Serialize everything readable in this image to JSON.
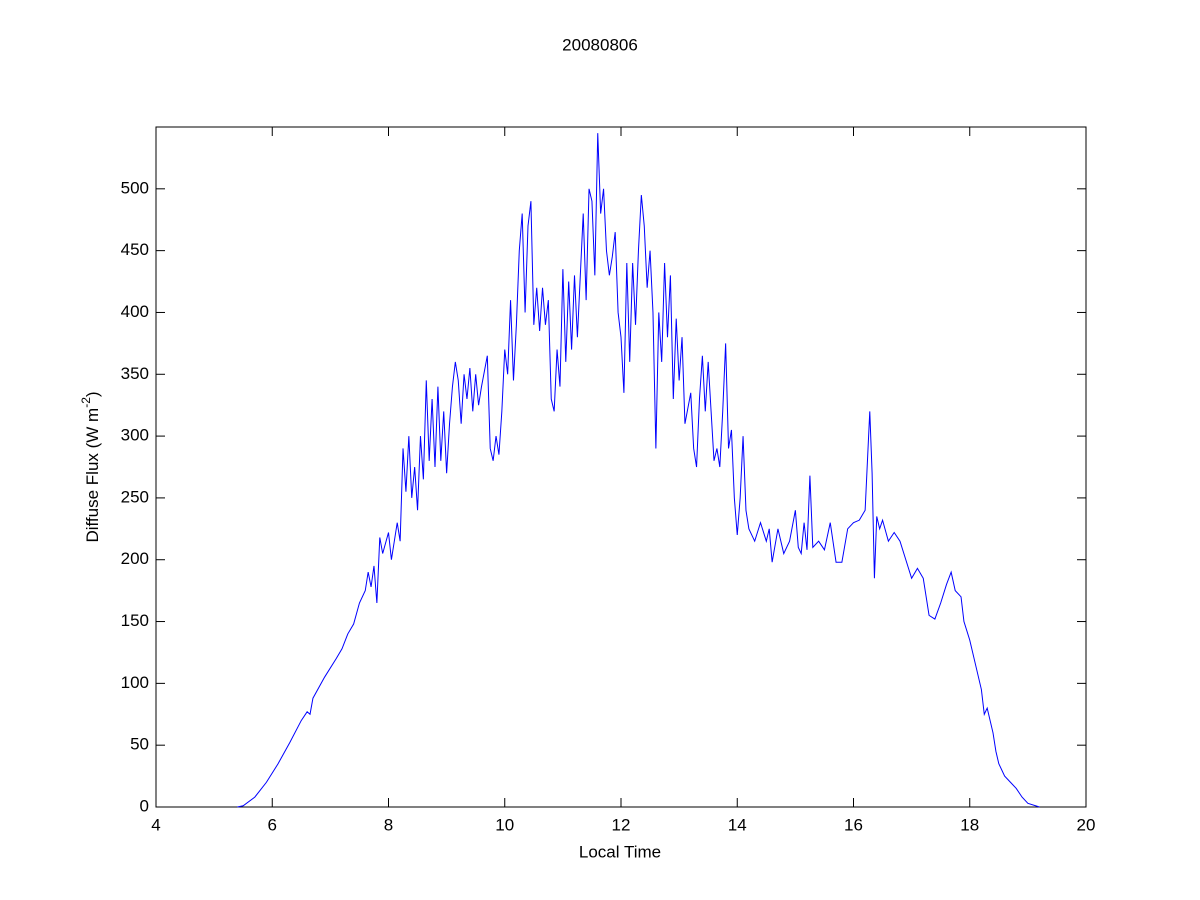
{
  "chart_data": {
    "type": "line",
    "title": "20080806",
    "x_label": "Local Time",
    "y_label": {
      "text": "Diffuse Flux (W m",
      "superscript": "-2",
      "suffix": ")"
    },
    "xlim": [
      4,
      20
    ],
    "xticks": [
      4,
      6,
      8,
      10,
      12,
      14,
      16,
      18,
      20
    ],
    "ylim": [
      0,
      550
    ],
    "yticks": [
      0,
      50,
      100,
      150,
      200,
      250,
      300,
      350,
      400,
      450,
      500
    ],
    "grid": false,
    "series": [
      {
        "color": "#0000ff",
        "x": [
          5.4,
          5.5,
          5.7,
          5.9,
          6.1,
          6.3,
          6.5,
          6.6,
          6.65,
          6.7,
          6.9,
          7.1,
          7.2,
          7.3,
          7.4,
          7.5,
          7.6,
          7.65,
          7.7,
          7.75,
          7.8,
          7.85,
          7.9,
          8.0,
          8.05,
          8.15,
          8.2,
          8.25,
          8.3,
          8.35,
          8.4,
          8.45,
          8.5,
          8.55,
          8.6,
          8.65,
          8.7,
          8.75,
          8.8,
          8.85,
          8.9,
          8.95,
          9.0,
          9.05,
          9.1,
          9.15,
          9.2,
          9.25,
          9.3,
          9.35,
          9.4,
          9.45,
          9.5,
          9.55,
          9.6,
          9.7,
          9.75,
          9.8,
          9.85,
          9.9,
          9.95,
          10.0,
          10.05,
          10.1,
          10.15,
          10.2,
          10.25,
          10.3,
          10.35,
          10.4,
          10.45,
          10.5,
          10.55,
          10.6,
          10.65,
          10.7,
          10.75,
          10.8,
          10.85,
          10.9,
          10.95,
          11.0,
          11.05,
          11.1,
          11.15,
          11.2,
          11.25,
          11.3,
          11.35,
          11.4,
          11.45,
          11.5,
          11.55,
          11.6,
          11.65,
          11.7,
          11.75,
          11.8,
          11.85,
          11.9,
          11.95,
          12.0,
          12.05,
          12.1,
          12.15,
          12.2,
          12.25,
          12.3,
          12.35,
          12.4,
          12.45,
          12.5,
          12.55,
          12.6,
          12.65,
          12.7,
          12.75,
          12.8,
          12.85,
          12.9,
          12.95,
          13.0,
          13.05,
          13.1,
          13.2,
          13.25,
          13.3,
          13.35,
          13.4,
          13.45,
          13.5,
          13.55,
          13.6,
          13.65,
          13.7,
          13.75,
          13.8,
          13.85,
          13.9,
          13.95,
          14.0,
          14.05,
          14.1,
          14.15,
          14.2,
          14.3,
          14.4,
          14.5,
          14.55,
          14.6,
          14.7,
          14.8,
          14.9,
          15.0,
          15.05,
          15.1,
          15.15,
          15.2,
          15.25,
          15.3,
          15.4,
          15.5,
          15.6,
          15.7,
          15.8,
          15.9,
          16.0,
          16.1,
          16.2,
          16.25,
          16.28,
          16.32,
          16.36,
          16.4,
          16.45,
          16.5,
          16.6,
          16.7,
          16.8,
          16.9,
          17.0,
          17.1,
          17.2,
          17.3,
          17.4,
          17.5,
          17.6,
          17.68,
          17.75,
          17.85,
          17.9,
          18.0,
          18.1,
          18.2,
          18.25,
          18.3,
          18.4,
          18.45,
          18.5,
          18.6,
          18.7,
          18.8,
          18.9,
          19.0,
          19.2
        ],
        "values": [
          0,
          1,
          8,
          20,
          35,
          52,
          70,
          77,
          75,
          88,
          105,
          120,
          128,
          140,
          148,
          165,
          175,
          190,
          178,
          195,
          165,
          218,
          205,
          222,
          200,
          230,
          215,
          290,
          255,
          300,
          250,
          275,
          240,
          300,
          265,
          345,
          280,
          330,
          275,
          340,
          280,
          320,
          270,
          310,
          340,
          360,
          345,
          310,
          350,
          330,
          355,
          320,
          350,
          325,
          340,
          365,
          290,
          280,
          300,
          285,
          320,
          370,
          350,
          410,
          345,
          390,
          450,
          480,
          400,
          470,
          490,
          390,
          420,
          385,
          420,
          390,
          410,
          330,
          320,
          370,
          340,
          435,
          360,
          425,
          370,
          430,
          380,
          430,
          480,
          410,
          500,
          490,
          430,
          545,
          480,
          500,
          450,
          430,
          445,
          465,
          400,
          380,
          335,
          440,
          360,
          440,
          390,
          450,
          495,
          470,
          420,
          450,
          400,
          290,
          400,
          360,
          440,
          380,
          430,
          330,
          395,
          345,
          380,
          310,
          335,
          290,
          275,
          330,
          365,
          320,
          360,
          320,
          280,
          290,
          275,
          320,
          375,
          290,
          305,
          250,
          220,
          250,
          300,
          240,
          225,
          215,
          230,
          215,
          225,
          198,
          225,
          205,
          215,
          240,
          210,
          205,
          230,
          208,
          268,
          210,
          215,
          208,
          230,
          198,
          198,
          225,
          230,
          232,
          240,
          290,
          320,
          270,
          185,
          235,
          225,
          232,
          215,
          222,
          215,
          200,
          185,
          193,
          185,
          155,
          152,
          165,
          180,
          190,
          175,
          170,
          150,
          135,
          115,
          95,
          75,
          80,
          60,
          45,
          35,
          25,
          20,
          15,
          8,
          3,
          0
        ]
      }
    ]
  }
}
